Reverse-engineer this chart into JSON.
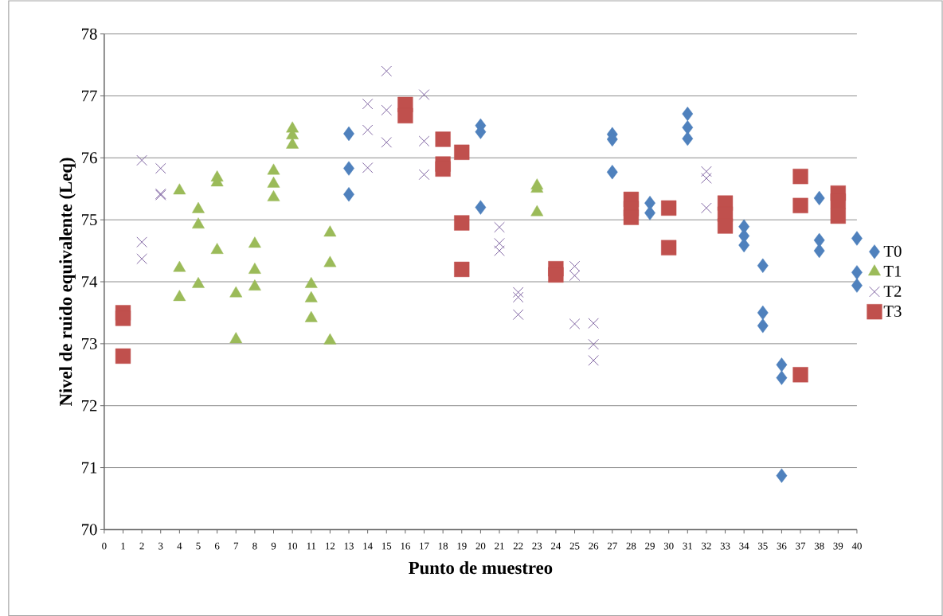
{
  "chart_data": {
    "type": "scatter",
    "xlabel": "Punto de muestreo",
    "ylabel": "Nivel de ruido equivalente (Leq)",
    "xlim": [
      0,
      40
    ],
    "ylim": [
      70,
      78
    ],
    "xticks": [
      0,
      1,
      2,
      3,
      4,
      5,
      6,
      7,
      8,
      9,
      10,
      11,
      12,
      13,
      14,
      15,
      16,
      17,
      18,
      19,
      20,
      21,
      22,
      23,
      24,
      25,
      26,
      27,
      28,
      29,
      30,
      31,
      32,
      33,
      34,
      35,
      36,
      37,
      38,
      39,
      40
    ],
    "yticks": [
      70,
      71,
      72,
      73,
      74,
      75,
      76,
      77,
      78
    ],
    "grid": "y",
    "legend": "right",
    "series": [
      {
        "name": "T0",
        "color": "#4f81bd",
        "marker": "diamond",
        "x": [
          13,
          13,
          13,
          20,
          20,
          20,
          27,
          27,
          27,
          29,
          29,
          31,
          31,
          31,
          34,
          34,
          34,
          35,
          35,
          35,
          36,
          36,
          36,
          38,
          38,
          38,
          40,
          40,
          40
        ],
        "values": [
          76.39,
          75.83,
          75.41,
          76.52,
          76.42,
          75.2,
          76.38,
          76.3,
          75.77,
          75.27,
          75.11,
          76.71,
          76.49,
          76.31,
          74.89,
          74.74,
          74.59,
          74.26,
          73.5,
          73.29,
          72.66,
          72.45,
          70.87,
          75.35,
          74.67,
          74.5,
          74.7,
          74.15,
          73.94
        ]
      },
      {
        "name": "T1",
        "color": "#9bbb59",
        "marker": "triangle",
        "x": [
          4,
          4,
          4,
          5,
          5,
          5,
          6,
          6,
          6,
          7,
          7,
          8,
          8,
          8,
          9,
          9,
          9,
          10,
          10,
          10,
          11,
          11,
          11,
          12,
          12,
          12,
          23,
          23,
          23
        ],
        "values": [
          75.47,
          74.22,
          73.75,
          75.17,
          74.92,
          73.96,
          75.68,
          75.6,
          74.51,
          73.81,
          73.07,
          74.61,
          74.19,
          73.92,
          75.79,
          75.58,
          75.36,
          76.47,
          76.36,
          76.21,
          73.96,
          73.73,
          73.41,
          74.79,
          74.3,
          73.05,
          75.55,
          75.5,
          75.12
        ]
      },
      {
        "name": "T2",
        "color": "#8064a2",
        "marker": "cross",
        "x": [
          2,
          2,
          2,
          3,
          3,
          3,
          14,
          14,
          14,
          15,
          15,
          15,
          17,
          17,
          17,
          21,
          21,
          21,
          22,
          22,
          22,
          25,
          25,
          25,
          26,
          26,
          26,
          32,
          32,
          32
        ],
        "values": [
          75.96,
          74.64,
          74.37,
          75.83,
          75.42,
          75.4,
          76.87,
          76.45,
          75.84,
          77.4,
          76.77,
          76.25,
          77.02,
          76.27,
          75.73,
          74.88,
          74.62,
          74.5,
          73.83,
          73.75,
          73.47,
          74.25,
          74.1,
          73.32,
          73.33,
          72.99,
          72.73,
          75.78,
          75.67,
          75.19
        ]
      },
      {
        "name": "T3",
        "color": "#c0504d",
        "marker": "square",
        "x": [
          1,
          1,
          1,
          16,
          16,
          18,
          18,
          18,
          19,
          19,
          19,
          24,
          24,
          28,
          28,
          28,
          30,
          30,
          33,
          33,
          33,
          37,
          37,
          37,
          39,
          39,
          39
        ],
        "values": [
          73.5,
          73.41,
          72.8,
          76.86,
          76.68,
          76.3,
          75.9,
          75.82,
          76.09,
          74.95,
          74.2,
          74.21,
          74.11,
          75.33,
          75.18,
          75.04,
          75.19,
          74.55,
          75.27,
          75.09,
          74.9,
          75.7,
          75.23,
          72.5,
          75.43,
          75.3,
          75.06
        ]
      }
    ]
  }
}
